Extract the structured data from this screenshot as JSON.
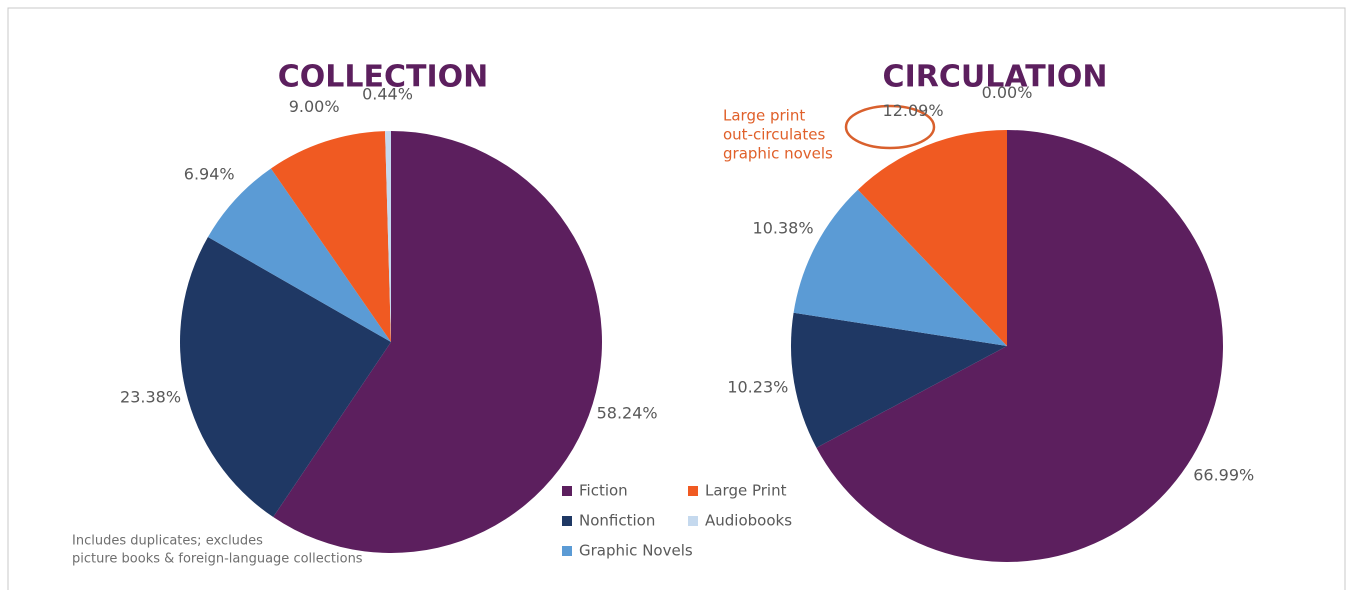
{
  "chart_data": [
    {
      "type": "pie",
      "title": "COLLECTION",
      "categories": [
        "Fiction",
        "Nonfiction",
        "Graphic Novels",
        "Large Print",
        "Audiobooks"
      ],
      "values": [
        58.24,
        23.38,
        6.94,
        9.0,
        0.44
      ],
      "value_labels": [
        "58.24%",
        "23.38%",
        "6.94%",
        "9.00%",
        "0.44%"
      ],
      "colors": [
        "#5c1f5e",
        "#1f3864",
        "#5b9bd5",
        "#f05a22",
        "#c5d9ee"
      ],
      "note": [
        "Includes duplicates; excludes",
        "picture books & foreign-language collections"
      ]
    },
    {
      "type": "pie",
      "title": "CIRCULATION",
      "categories": [
        "Fiction",
        "Nonfiction",
        "Graphic Novels",
        "Large Print",
        "Audiobooks"
      ],
      "values": [
        66.99,
        10.23,
        10.38,
        12.09,
        0.0
      ],
      "value_labels": [
        "66.99%",
        "10.23%",
        "10.38%",
        "12.09%",
        "0.00%"
      ],
      "colors": [
        "#5c1f5e",
        "#1f3864",
        "#5b9bd5",
        "#f05a22",
        "#c5d9ee"
      ],
      "annotation": [
        "Large print",
        "out-circulates",
        "graphic novels"
      ]
    }
  ]
}
